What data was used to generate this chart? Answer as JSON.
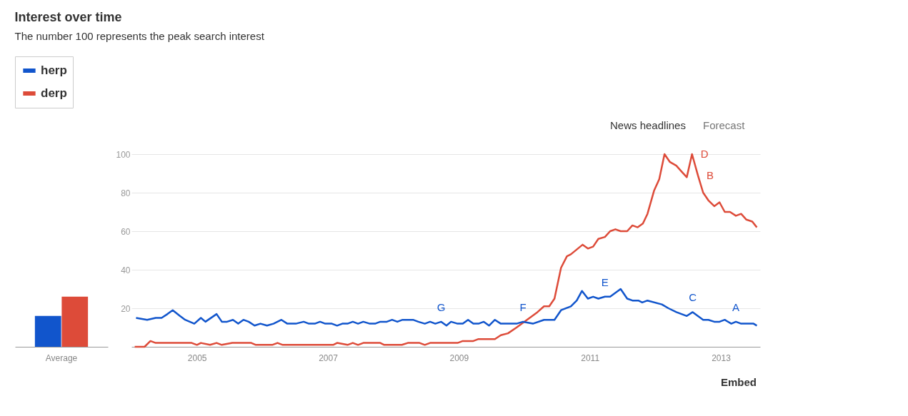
{
  "chart_data": [
    {
      "type": "bar",
      "title": "Interest over time",
      "subtitle": "The number 100 represents the peak search interest",
      "categories": [
        "Average"
      ],
      "ylim": [
        0,
        100
      ],
      "tick_labels": "x",
      "grid": false,
      "legend": "top left",
      "series": [
        {
          "name": "herp",
          "color": "#1155cc",
          "values": [
            16
          ]
        },
        {
          "name": "derp",
          "color": "#dd4b39",
          "values": [
            26
          ]
        }
      ]
    },
    {
      "type": "line",
      "xlim": [
        2004,
        2013.6
      ],
      "xticks": [
        2005,
        2007,
        2009,
        2011,
        2013
      ],
      "ylim": [
        0,
        100
      ],
      "yticks": [
        20,
        40,
        60,
        80,
        100
      ],
      "grid": "y",
      "legend": "top left",
      "series": [
        {
          "name": "derp",
          "color": "#dd4b39",
          "x": [
            2004.05,
            2004.2,
            2004.29,
            2004.37,
            2004.92,
            2005.0,
            2005.06,
            2005.2,
            2005.3,
            2005.38,
            2005.54,
            2005.83,
            2005.9,
            2006.15,
            2006.23,
            2006.31,
            2007.08,
            2007.14,
            2007.3,
            2007.38,
            2007.46,
            2007.54,
            2007.8,
            2007.86,
            2008.13,
            2008.22,
            2008.4,
            2008.48,
            2008.56,
            2008.9,
            2008.98,
            2009.06,
            2009.22,
            2009.3,
            2009.55,
            2009.64,
            2009.75,
            2009.88,
            2010.04,
            2010.2,
            2010.3,
            2010.38,
            2010.46,
            2010.56,
            2010.65,
            2010.71,
            2010.89,
            2010.97,
            2011.05,
            2011.13,
            2011.23,
            2011.31,
            2011.39,
            2011.47,
            2011.57,
            2011.65,
            2011.73,
            2011.81,
            2011.88,
            2011.98,
            2012.06,
            2012.14,
            2012.22,
            2012.32,
            2012.4,
            2012.48,
            2012.56,
            2012.65,
            2012.73,
            2012.81,
            2012.9,
            2012.98,
            2013.06,
            2013.14,
            2013.23,
            2013.31,
            2013.39,
            2013.48,
            2013.55
          ],
          "values": [
            0,
            0,
            3,
            2,
            2,
            1,
            2,
            1,
            2,
            1,
            2,
            2,
            1,
            1,
            2,
            1,
            1,
            2,
            1,
            2,
            1,
            2,
            2,
            1,
            1,
            2,
            2,
            1,
            2,
            2,
            2,
            3,
            3,
            4,
            4,
            6,
            7,
            10,
            14,
            18,
            21,
            21,
            25,
            41,
            47,
            48,
            53,
            51,
            52,
            56,
            57,
            60,
            61,
            60,
            60,
            63,
            62,
            64,
            69,
            81,
            87,
            100,
            96,
            94,
            91,
            88,
            100,
            89,
            80,
            76,
            73,
            75,
            70,
            70,
            68,
            69,
            66,
            65,
            62
          ]
        },
        {
          "name": "herp",
          "color": "#1155cc",
          "x": [
            2004.07,
            2004.24,
            2004.37,
            2004.46,
            2004.55,
            2004.63,
            2004.74,
            2004.82,
            2004.96,
            2005.06,
            2005.13,
            2005.3,
            2005.38,
            2005.46,
            2005.55,
            2005.63,
            2005.71,
            2005.79,
            2005.88,
            2005.97,
            2006.07,
            2006.17,
            2006.29,
            2006.38,
            2006.51,
            2006.63,
            2006.71,
            2006.8,
            2006.88,
            2006.96,
            2007.06,
            2007.14,
            2007.22,
            2007.3,
            2007.38,
            2007.46,
            2007.54,
            2007.64,
            2007.72,
            2007.8,
            2007.9,
            2007.98,
            2008.06,
            2008.14,
            2008.3,
            2008.38,
            2008.48,
            2008.56,
            2008.64,
            2008.73,
            2008.81,
            2008.88,
            2008.98,
            2009.06,
            2009.14,
            2009.22,
            2009.3,
            2009.38,
            2009.46,
            2009.55,
            2009.64,
            2009.88,
            2009.98,
            2010.13,
            2010.3,
            2010.46,
            2010.56,
            2010.71,
            2010.8,
            2010.88,
            2010.97,
            2011.05,
            2011.13,
            2011.23,
            2011.31,
            2011.47,
            2011.57,
            2011.65,
            2011.74,
            2011.8,
            2011.88,
            2012.1,
            2012.2,
            2012.32,
            2012.48,
            2012.57,
            2012.73,
            2012.81,
            2012.9,
            2012.98,
            2013.06,
            2013.16,
            2013.23,
            2013.31,
            2013.5,
            2013.55
          ],
          "values": [
            15,
            14,
            15,
            15,
            17,
            19,
            16,
            14,
            12,
            15,
            13,
            17,
            13,
            13,
            14,
            12,
            14,
            13,
            11,
            12,
            11,
            12,
            14,
            12,
            12,
            13,
            12,
            12,
            13,
            12,
            12,
            11,
            12,
            12,
            13,
            12,
            13,
            12,
            12,
            13,
            13,
            14,
            13,
            14,
            14,
            13,
            12,
            13,
            12,
            13,
            11,
            13,
            12,
            12,
            14,
            12,
            12,
            13,
            11,
            14,
            12,
            12,
            13,
            12,
            14,
            14,
            19,
            21,
            24,
            29,
            25,
            26,
            25,
            26,
            26,
            30,
            25,
            24,
            24,
            23,
            24,
            22,
            20,
            18,
            16,
            18,
            14,
            14,
            13,
            13,
            14,
            12,
            13,
            12,
            12,
            11
          ]
        }
      ],
      "annotations": [
        {
          "text": "G",
          "x": 2008.73,
          "y": 13
        },
        {
          "text": "F",
          "x": 2009.98,
          "y": 13
        },
        {
          "text": "E",
          "x": 2011.23,
          "y": 26
        },
        {
          "text": "D",
          "x": 2012.56,
          "y": 100
        },
        {
          "text": "B",
          "x": 2012.65,
          "y": 89
        },
        {
          "text": "C",
          "x": 2012.57,
          "y": 18
        },
        {
          "text": "A",
          "x": 2013.23,
          "y": 13
        },
        "News headlines",
        "Forecast",
        "Embed"
      ]
    }
  ]
}
